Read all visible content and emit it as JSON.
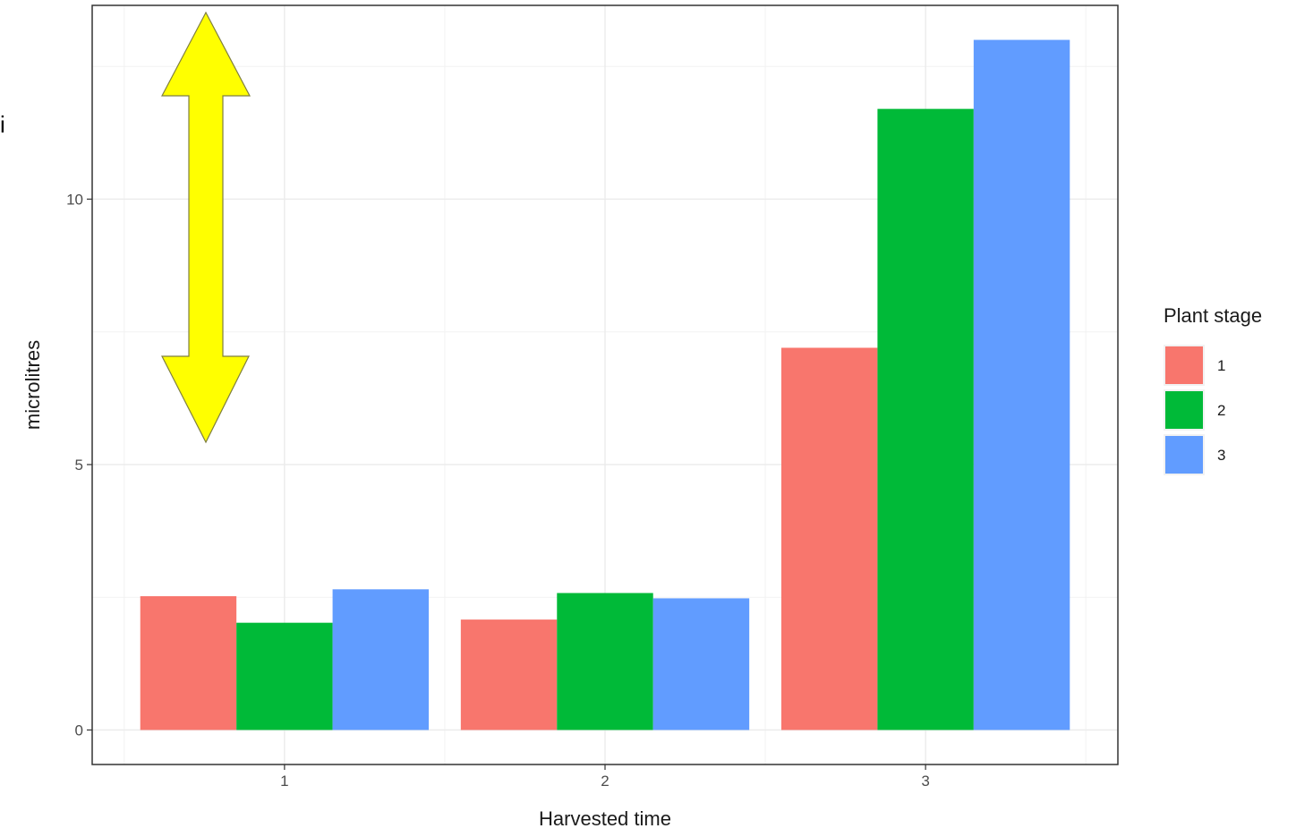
{
  "stray_text": "i",
  "chart_data": {
    "type": "bar",
    "categories": [
      "1",
      "2",
      "3"
    ],
    "series": [
      {
        "name": "1",
        "color": "#F8766D",
        "values": [
          2.52,
          2.08,
          7.2
        ]
      },
      {
        "name": "2",
        "color": "#00BA38",
        "values": [
          2.02,
          2.58,
          11.7
        ]
      },
      {
        "name": "3",
        "color": "#619CFF",
        "values": [
          2.65,
          2.48,
          13.0
        ]
      }
    ],
    "title": "",
    "xlabel": "Harvested time",
    "ylabel": "microlitres",
    "ylim": [
      -0.65,
      13.65
    ],
    "yticks": [
      "0",
      "5",
      "10"
    ],
    "ytick_values": [
      0,
      5,
      10
    ],
    "legend_title": "Plant stage",
    "legend_position": "right",
    "grid": true,
    "annotation": {
      "type": "double-headed-arrow",
      "color": "#FFFF00",
      "outline": "#7f7f3f"
    }
  }
}
